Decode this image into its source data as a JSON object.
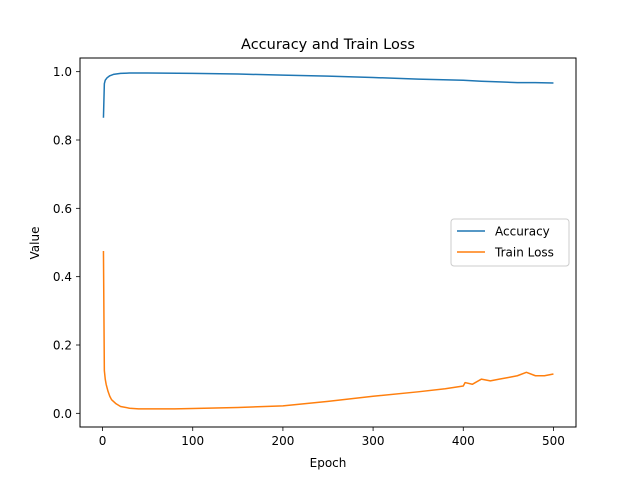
{
  "chart_data": {
    "type": "line",
    "title": "Accuracy and Train Loss",
    "xlabel": "Epoch",
    "ylabel": "Value",
    "xlim": [
      -25,
      525
    ],
    "ylim": [
      -0.04,
      1.04
    ],
    "xticks": [
      0,
      100,
      200,
      300,
      400,
      500
    ],
    "yticks": [
      0.0,
      0.2,
      0.4,
      0.6,
      0.8,
      1.0
    ],
    "xtick_labels": [
      "0",
      "100",
      "200",
      "300",
      "400",
      "500"
    ],
    "ytick_labels": [
      "0.0",
      "0.2",
      "0.4",
      "0.6",
      "0.8",
      "1.0"
    ],
    "grid": false,
    "legend_position": "center-right",
    "series": [
      {
        "name": "Accuracy",
        "color": "#1f77b4",
        "x": [
          1,
          2,
          3,
          5,
          8,
          12,
          20,
          30,
          50,
          100,
          150,
          200,
          250,
          300,
          350,
          400,
          420,
          440,
          460,
          480,
          500
        ],
        "y": [
          0.865,
          0.965,
          0.975,
          0.982,
          0.988,
          0.992,
          0.995,
          0.996,
          0.996,
          0.995,
          0.993,
          0.99,
          0.987,
          0.983,
          0.978,
          0.975,
          0.972,
          0.97,
          0.968,
          0.968,
          0.967
        ]
      },
      {
        "name": "Train Loss",
        "color": "#ff7f0e",
        "x": [
          1,
          2,
          3,
          4,
          6,
          8,
          10,
          15,
          20,
          30,
          40,
          60,
          80,
          100,
          150,
          200,
          250,
          300,
          350,
          380,
          400,
          402,
          410,
          420,
          430,
          440,
          450,
          460,
          470,
          480,
          490,
          500
        ],
        "y": [
          0.475,
          0.125,
          0.1,
          0.085,
          0.065,
          0.05,
          0.04,
          0.028,
          0.02,
          0.015,
          0.013,
          0.013,
          0.013,
          0.014,
          0.017,
          0.022,
          0.035,
          0.05,
          0.063,
          0.072,
          0.08,
          0.09,
          0.085,
          0.1,
          0.095,
          0.1,
          0.105,
          0.11,
          0.12,
          0.11,
          0.11,
          0.115
        ]
      }
    ]
  }
}
